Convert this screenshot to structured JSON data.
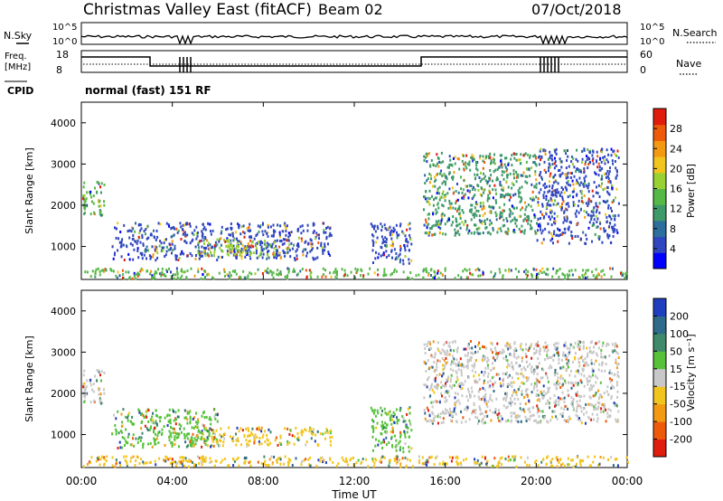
{
  "header": {
    "station": "Christmas Valley East (fitACF)",
    "beam": "Beam 02",
    "date": "07/Oct/2018"
  },
  "top_panels": {
    "nsky_label": "N.Sky",
    "nsky_ticks": [
      "10^5",
      "10^0"
    ],
    "nsearch_label": "N.Search",
    "nsearch_ticks": [
      "10^5",
      "10^0"
    ],
    "freq_label_1": "Freq.",
    "freq_label_2": "[MHz]",
    "freq_ticks": [
      "18",
      "8"
    ],
    "nave_label": "Nave",
    "nave_ticks": [
      "60",
      "0"
    ],
    "cpid_label": "CPID",
    "cpid_text": "normal (fast) 151 RF"
  },
  "x_axis": {
    "ticks": [
      "00:00",
      "04:00",
      "08:00",
      "12:00",
      "16:00",
      "20:00",
      "00:00"
    ],
    "label": "Time UT",
    "range_hours": [
      0,
      24
    ]
  },
  "chart_data": [
    {
      "type": "heatmap",
      "panel": "power",
      "ylabel": "Slant Range [km]",
      "y_ticks": [
        "1000",
        "2000",
        "3000",
        "4000"
      ],
      "ylim": [
        200,
        4500
      ],
      "colorbar": {
        "label": "Power [dB]",
        "tick_labels": [
          "4",
          "8",
          "12",
          "16",
          "20",
          "24",
          "28"
        ],
        "colors": [
          "#0000ff",
          "#2f46c0",
          "#2e6e9c",
          "#3f9a6a",
          "#56b847",
          "#99d133",
          "#f2c51e",
          "#f39a12",
          "#ee5a0a",
          "#e01c0c"
        ]
      },
      "regions": [
        {
          "t_start": 0.0,
          "t_end": 1.0,
          "r_start": 1750,
          "r_end": 2600,
          "dominant": "#56b847"
        },
        {
          "t_start": 1.3,
          "t_end": 11.0,
          "r_start": 700,
          "r_end": 1600,
          "dominant": "#2f46c0"
        },
        {
          "t_start": 5.3,
          "t_end": 8.5,
          "r_start": 800,
          "r_end": 1200,
          "dominant": "#99d133"
        },
        {
          "t_start": 12.7,
          "t_end": 14.5,
          "r_start": 600,
          "r_end": 1600,
          "dominant": "#2f46c0"
        },
        {
          "t_start": 15.0,
          "t_end": 20.0,
          "r_start": 1300,
          "r_end": 3300,
          "dominant": "#3f9a6a"
        },
        {
          "t_start": 20.0,
          "t_end": 23.6,
          "r_start": 1100,
          "r_end": 3400,
          "dominant": "#2f46c0"
        },
        {
          "t_start": 0.0,
          "t_end": 24.0,
          "r_start": 250,
          "r_end": 500,
          "dominant": "#56b847"
        }
      ]
    },
    {
      "type": "heatmap",
      "panel": "velocity",
      "ylabel": "Slant Range [km]",
      "y_ticks": [
        "1000",
        "2000",
        "3000",
        "4000"
      ],
      "ylim": [
        200,
        4500
      ],
      "colorbar": {
        "label": "Velocity [m s⁻¹]",
        "tick_labels": [
          "200",
          "100",
          "50",
          "15",
          "-15",
          "-50",
          "-100",
          "-200"
        ],
        "colors": [
          "#1f3fbf",
          "#2f6a8a",
          "#3f8a6a",
          "#56c23a",
          "#c8c8c8",
          "#f2c51e",
          "#f39a12",
          "#ee5a0a",
          "#e01c0c"
        ]
      },
      "regions": [
        {
          "t_start": 0.0,
          "t_end": 1.0,
          "r_start": 1750,
          "r_end": 2600,
          "dominant": "#c8c8c8"
        },
        {
          "t_start": 1.3,
          "t_end": 6.0,
          "r_start": 700,
          "r_end": 1650,
          "dominant": "#56c23a"
        },
        {
          "t_start": 5.3,
          "t_end": 11.0,
          "r_start": 750,
          "r_end": 1200,
          "dominant": "#f2c51e"
        },
        {
          "t_start": 12.7,
          "t_end": 14.5,
          "r_start": 600,
          "r_end": 1700,
          "dominant": "#56c23a"
        },
        {
          "t_start": 15.0,
          "t_end": 23.6,
          "r_start": 1300,
          "r_end": 3300,
          "dominant": "#c8c8c8"
        },
        {
          "t_start": 0.0,
          "t_end": 24.0,
          "r_start": 250,
          "r_end": 500,
          "dominant": "#f2c51e"
        }
      ]
    }
  ]
}
